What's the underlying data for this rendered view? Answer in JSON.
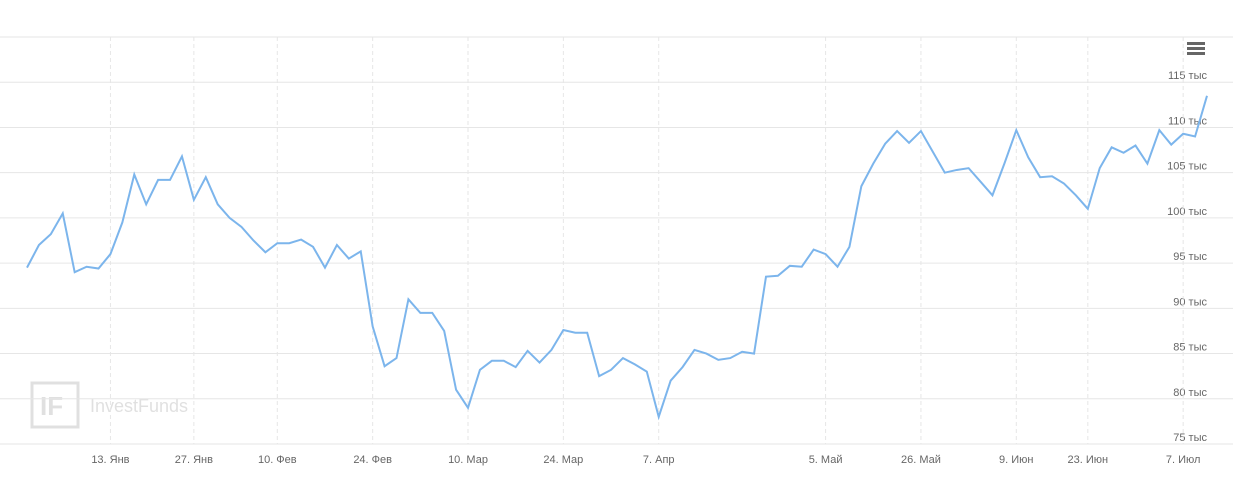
{
  "chart_data": {
    "type": "line",
    "watermark": "InvestFunds",
    "categories": [
      null,
      null,
      null,
      null,
      null,
      null,
      null,
      "13. Янв",
      null,
      null,
      null,
      null,
      null,
      null,
      "27. Янв",
      null,
      null,
      null,
      null,
      null,
      null,
      "10. Фев",
      null,
      null,
      null,
      null,
      null,
      null,
      null,
      "24. Фев",
      null,
      null,
      null,
      null,
      null,
      null,
      null,
      "10. Мар",
      null,
      null,
      null,
      null,
      null,
      null,
      null,
      "24. Мар",
      null,
      null,
      null,
      null,
      null,
      null,
      null,
      "7. Апр",
      null,
      null,
      null,
      null,
      null,
      null,
      null,
      null,
      null,
      null,
      null,
      null,
      null,
      "5. Май",
      null,
      null,
      null,
      null,
      null,
      null,
      null,
      "26. Май",
      null,
      null,
      null,
      null,
      null,
      null,
      null,
      "9. Июн",
      null,
      null,
      null,
      null,
      null,
      "23. Июн",
      null,
      null,
      null,
      null,
      null,
      null,
      null,
      "7. Июл",
      null,
      null
    ],
    "series": [
      {
        "color": "#7cb5ec",
        "values": [
          94.5,
          97,
          98.2,
          100.5,
          94,
          94.6,
          94.4,
          96,
          99.5,
          104.8,
          101.5,
          104.2,
          104.2,
          106.8,
          102,
          104.5,
          101.5,
          100,
          99,
          97.5,
          96.2,
          97.2,
          97.2,
          97.6,
          96.8,
          94.5,
          97,
          95.5,
          96.3,
          88,
          83.6,
          84.5,
          91,
          89.5,
          89.5,
          87.5,
          81,
          79,
          83.2,
          84.2,
          84.2,
          83.5,
          85.3,
          84,
          85.4,
          87.6,
          87.3,
          87.3,
          82.5,
          83.2,
          84.5,
          83.8,
          83,
          78,
          82,
          83.5,
          85.4,
          85,
          84.3,
          84.5,
          85.2,
          85,
          93.5,
          93.6,
          94.7,
          94.6,
          96.5,
          96,
          94.6,
          96.8,
          103.5,
          106,
          108.2,
          109.6,
          108.3,
          109.6,
          107.3,
          105,
          105.3,
          105.5,
          104,
          102.5,
          106,
          109.7,
          106.7,
          104.5,
          104.6,
          103.8,
          102.5,
          101,
          105.5,
          107.8,
          107.2,
          108,
          106,
          109.7,
          108.1,
          109.3,
          109,
          113.5
        ]
      }
    ],
    "ylim": [
      75,
      120
    ],
    "yticks": [
      {
        "value": 75,
        "label": "75 тыс"
      },
      {
        "value": 80,
        "label": "80 тыс"
      },
      {
        "value": 85,
        "label": "85 тыс"
      },
      {
        "value": 90,
        "label": "90 тыс"
      },
      {
        "value": 95,
        "label": "95 тыс"
      },
      {
        "value": 100,
        "label": "100 тыс"
      },
      {
        "value": 105,
        "label": "105 тыс"
      },
      {
        "value": 110,
        "label": "110 тыс"
      },
      {
        "value": 115,
        "label": "115 тыс"
      }
    ],
    "grid": true
  }
}
